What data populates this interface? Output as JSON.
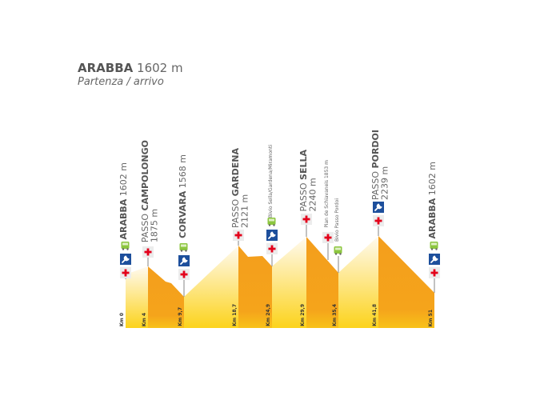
{
  "header": {
    "town": "ARABBA",
    "elevation": "1602 m",
    "subtitle": "Partenza / arrivo"
  },
  "colors": {
    "descent": "#f49e1c",
    "ascent_top": "#fff8e8",
    "ascent_bottom": "#fcd31c",
    "first_aid": "#e3001b",
    "service": "#1d4f9c",
    "bus": "#8cc63f",
    "line": "#9a9a9a"
  },
  "points": [
    {
      "km": "Km 0",
      "prefix": "",
      "name": "ARABBA",
      "elev": "1602 m",
      "icons": [
        "first-aid",
        "service",
        "bus"
      ]
    },
    {
      "km": "Km 4",
      "prefix": "PASSO",
      "name": "CAMPOLONGO",
      "elev": "1875 m",
      "icons": [
        "first-aid"
      ]
    },
    {
      "km": "Km 9,7",
      "prefix": "",
      "name": "CORVARA",
      "elev": "1568 m",
      "icons": [
        "first-aid",
        "service",
        "bus"
      ]
    },
    {
      "km": "Km 18,7",
      "prefix": "PASSO",
      "name": "GARDENA",
      "elev": "2121 m",
      "icons": [
        "first-aid"
      ]
    },
    {
      "km": "Km 24,9",
      "label": "Bivio Sella/Gardena/Miramonti",
      "icons": [
        "first-aid",
        "service",
        "bus"
      ]
    },
    {
      "km": "Km 29,9",
      "prefix": "PASSO",
      "name": "SELLA",
      "elev": "2240 m",
      "icons": [
        "first-aid"
      ]
    },
    {
      "label": "Pian de Schiavaneis 1853 m",
      "icons": [
        "first-aid"
      ]
    },
    {
      "km": "Km 35,4",
      "label": "Bivio Passo Pordoi",
      "icons": [
        "bus"
      ]
    },
    {
      "km": "Km 41,8",
      "prefix": "PASSO",
      "name": "PORDOI",
      "elev": "2239 m",
      "icons": [
        "first-aid",
        "service"
      ]
    },
    {
      "km": "Km 51",
      "prefix": "",
      "name": "ARABBA",
      "elev": "1602 m",
      "icons": [
        "first-aid",
        "service",
        "bus"
      ]
    }
  ]
}
